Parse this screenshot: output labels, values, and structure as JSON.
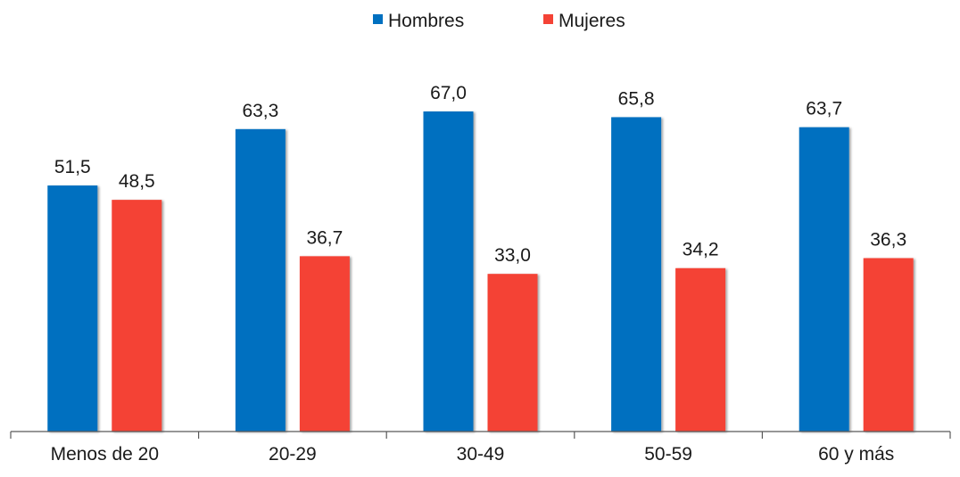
{
  "chart_data": {
    "type": "bar",
    "categories": [
      "Menos de 20",
      "20-29",
      "30-49",
      "50-59",
      "60 y más"
    ],
    "series": [
      {
        "name": "Hombres",
        "color": "#0070C0",
        "values": [
          51.5,
          63.3,
          67.0,
          65.8,
          63.7
        ],
        "labels": [
          "51,5",
          "63,3",
          "67,0",
          "65,8",
          "63,7"
        ]
      },
      {
        "name": "Mujeres",
        "color": "#F44336",
        "values": [
          48.5,
          36.7,
          33.0,
          34.2,
          36.3
        ],
        "labels": [
          "48,5",
          "36,7",
          "33,0",
          "34,2",
          "36,3"
        ]
      }
    ],
    "title": "",
    "xlabel": "",
    "ylabel": "",
    "ylim": [
      0,
      67
    ],
    "grid": false,
    "legend_position": "top-center"
  }
}
